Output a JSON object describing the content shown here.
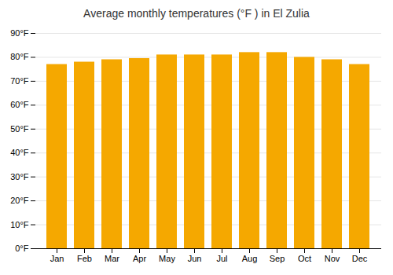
{
  "chart_data": {
    "type": "bar",
    "title": "Average monthly temperatures (°F ) in El Zulia",
    "categories": [
      "Jan",
      "Feb",
      "Mar",
      "Apr",
      "May",
      "Jun",
      "Jul",
      "Aug",
      "Sep",
      "Oct",
      "Nov",
      "Dec"
    ],
    "values": [
      77.0,
      78.0,
      79.0,
      79.5,
      81.0,
      81.0,
      81.0,
      82.0,
      82.0,
      80.0,
      79.0,
      77.0
    ],
    "color": "#F5A800",
    "ylim": [
      0,
      90
    ],
    "yticks": [
      {
        "value": 0,
        "label": "0°F"
      },
      {
        "value": 10,
        "label": "10°F"
      },
      {
        "value": 20,
        "label": "20°F"
      },
      {
        "value": 30,
        "label": "30°F"
      },
      {
        "value": 40,
        "label": "40°F"
      },
      {
        "value": 50,
        "label": "50°F"
      },
      {
        "value": 60,
        "label": "60°F"
      },
      {
        "value": 70,
        "label": "70°F"
      },
      {
        "value": 80,
        "label": "80°F"
      },
      {
        "value": 90,
        "label": "90°F"
      }
    ],
    "grid": true
  }
}
